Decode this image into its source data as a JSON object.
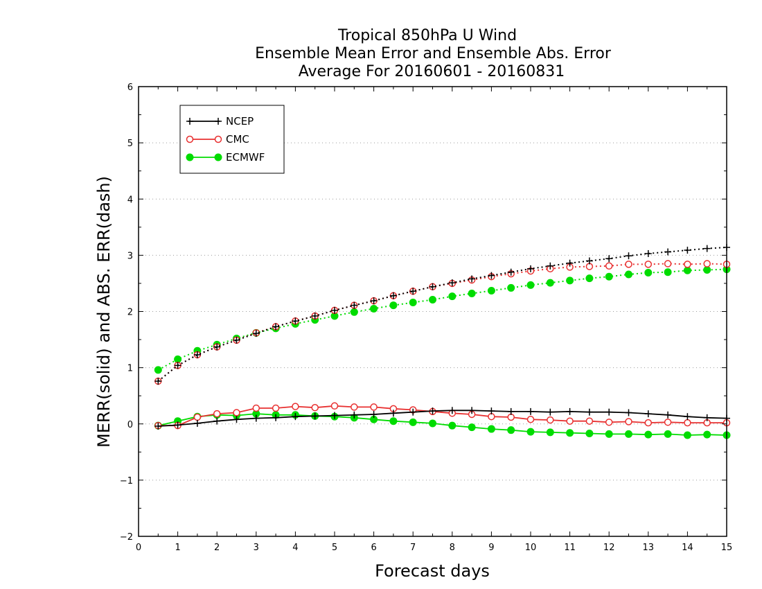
{
  "chart_data": {
    "type": "line",
    "title_lines": [
      "Tropical 850hPa U Wind",
      "Ensemble Mean Error and Ensemble Abs. Error",
      "Average For 20160601 - 20160831"
    ],
    "xlabel": "Forecast days",
    "ylabel": "MERR(solid) and ABS. ERR(dash)",
    "xlim": [
      0,
      15
    ],
    "ylim": [
      -2,
      6
    ],
    "x_ticks": [
      0,
      1,
      2,
      3,
      4,
      5,
      6,
      7,
      8,
      9,
      10,
      11,
      12,
      13,
      14,
      15
    ],
    "x_tick_labels": [
      "0",
      "1",
      "2",
      "3",
      "4",
      "5",
      "6",
      "7",
      "8",
      "9",
      "10",
      "11",
      "12",
      "13",
      "14",
      "15"
    ],
    "y_ticks": [
      -2,
      -1,
      0,
      1,
      2,
      3,
      4,
      5,
      6
    ],
    "y_tick_labels": [
      "−2",
      "−1",
      "0",
      "1",
      "2",
      "3",
      "4",
      "5",
      "6"
    ],
    "grid": "horizontal-dotted",
    "legend_position": "top-left",
    "x": [
      0.5,
      1,
      1.5,
      2,
      2.5,
      3,
      3.5,
      4,
      4.5,
      5,
      5.5,
      6,
      6.5,
      7,
      7.5,
      8,
      8.5,
      9,
      9.5,
      10,
      10.5,
      11,
      11.5,
      12,
      12.5,
      13,
      13.5,
      14,
      14.5,
      15
    ],
    "series": [
      {
        "name": "NCEP",
        "color": "#000000",
        "marker": "plus",
        "mean_error": [
          -0.04,
          -0.02,
          0.01,
          0.05,
          0.08,
          0.1,
          0.11,
          0.13,
          0.14,
          0.15,
          0.16,
          0.17,
          0.19,
          0.21,
          0.23,
          0.24,
          0.24,
          0.23,
          0.22,
          0.22,
          0.21,
          0.22,
          0.21,
          0.21,
          0.2,
          0.18,
          0.16,
          0.13,
          0.11,
          0.1
        ],
        "abs_error": [
          0.76,
          1.04,
          1.23,
          1.37,
          1.49,
          1.61,
          1.73,
          1.83,
          1.92,
          2.02,
          2.11,
          2.19,
          2.28,
          2.36,
          2.44,
          2.51,
          2.58,
          2.64,
          2.7,
          2.76,
          2.81,
          2.86,
          2.9,
          2.94,
          2.99,
          3.03,
          3.06,
          3.09,
          3.12,
          3.14
        ]
      },
      {
        "name": "CMC",
        "color": "#e83030",
        "marker": "circle-open",
        "mean_error": [
          -0.03,
          -0.03,
          0.12,
          0.18,
          0.2,
          0.28,
          0.28,
          0.31,
          0.29,
          0.32,
          0.3,
          0.3,
          0.27,
          0.25,
          0.22,
          0.19,
          0.17,
          0.13,
          0.12,
          0.08,
          0.07,
          0.05,
          0.05,
          0.03,
          0.04,
          0.02,
          0.03,
          0.02,
          0.02,
          0.02
        ],
        "abs_error": [
          0.76,
          1.04,
          1.23,
          1.37,
          1.49,
          1.62,
          1.73,
          1.83,
          1.92,
          2.02,
          2.11,
          2.19,
          2.28,
          2.36,
          2.44,
          2.5,
          2.56,
          2.62,
          2.67,
          2.72,
          2.76,
          2.79,
          2.8,
          2.81,
          2.84,
          2.84,
          2.85,
          2.84,
          2.85,
          2.84
        ]
      },
      {
        "name": "ECMWF",
        "color": "#00dc00",
        "marker": "circle-filled",
        "mean_error": [
          -0.03,
          0.05,
          0.13,
          0.16,
          0.15,
          0.18,
          0.16,
          0.16,
          0.14,
          0.13,
          0.11,
          0.08,
          0.05,
          0.03,
          0.01,
          -0.03,
          -0.06,
          -0.09,
          -0.11,
          -0.14,
          -0.15,
          -0.16,
          -0.17,
          -0.18,
          -0.18,
          -0.19,
          -0.18,
          -0.2,
          -0.19,
          -0.2
        ],
        "abs_error": [
          0.96,
          1.15,
          1.3,
          1.41,
          1.52,
          1.62,
          1.7,
          1.78,
          1.85,
          1.92,
          1.99,
          2.05,
          2.11,
          2.16,
          2.21,
          2.27,
          2.32,
          2.37,
          2.42,
          2.47,
          2.51,
          2.55,
          2.59,
          2.62,
          2.66,
          2.69,
          2.7,
          2.73,
          2.74,
          2.75
        ]
      }
    ]
  }
}
